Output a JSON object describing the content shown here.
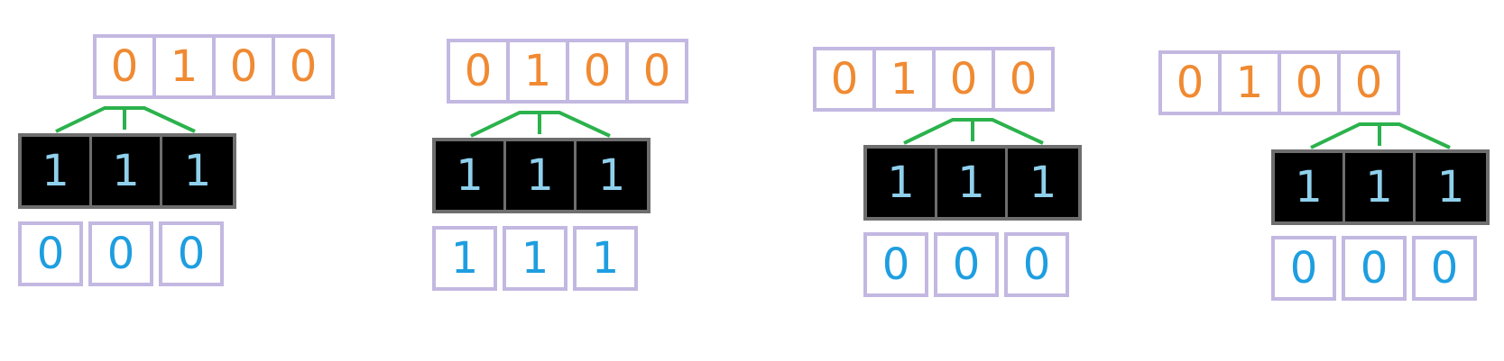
{
  "colors": {
    "top_digit": "#f08a32",
    "filter_digit": "#8fd0ec",
    "bottom_digit": "#1e9ee0",
    "cell_border": "#c3b8e1",
    "filter_border": "#6e6e6e",
    "bracket": "#2bb24c"
  },
  "panels": [
    {
      "input": [
        "0",
        "1",
        "0",
        "0"
      ],
      "filter": [
        "1",
        "1",
        "1"
      ],
      "output": [
        "0",
        "0",
        "0"
      ]
    },
    {
      "input": [
        "0",
        "1",
        "0",
        "0"
      ],
      "filter": [
        "1",
        "1",
        "1"
      ],
      "output": [
        "1",
        "1",
        "1"
      ]
    },
    {
      "input": [
        "0",
        "1",
        "0",
        "0"
      ],
      "filter": [
        "1",
        "1",
        "1"
      ],
      "output": [
        "0",
        "0",
        "0"
      ]
    },
    {
      "input": [
        "0",
        "1",
        "0",
        "0"
      ],
      "filter": [
        "1",
        "1",
        "1"
      ],
      "output": [
        "0",
        "0",
        "0"
      ]
    }
  ]
}
